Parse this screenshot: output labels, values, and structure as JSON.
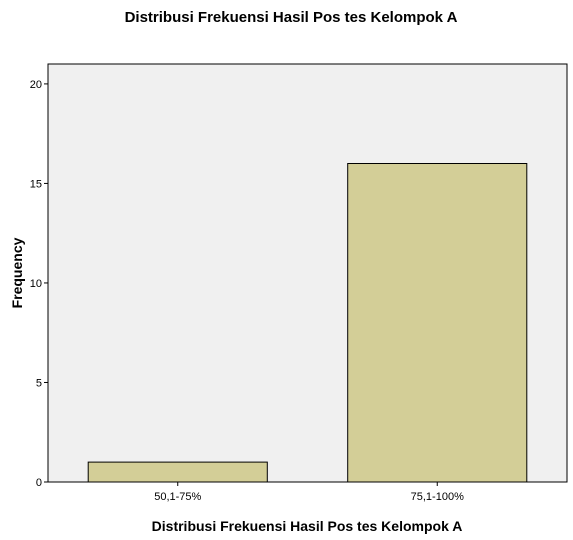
{
  "chart_data": {
    "type": "bar",
    "title": "Distribusi Frekuensi Hasil Pos tes Kelompok A",
    "xlabel": "Distribusi Frekuensi Hasil Pos tes Kelompok A",
    "ylabel": "Frequency",
    "categories": [
      "50,1-75%",
      "75,1-100%"
    ],
    "values": [
      1,
      16
    ],
    "ylim": [
      0,
      21
    ],
    "yticks": [
      0,
      5,
      10,
      15,
      20
    ],
    "grid": false,
    "legend": "none",
    "colors": {
      "plot_background": "#f0f0f0",
      "bar_fill": "#d3ce97",
      "bar_stroke": "#000000",
      "axis": "#000000"
    }
  }
}
